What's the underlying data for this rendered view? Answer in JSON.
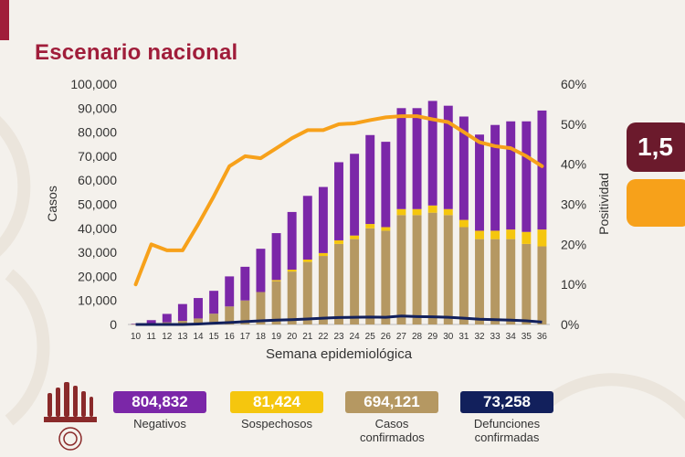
{
  "title": "Escenario nacional",
  "side_cards": [
    {
      "text": "1,5",
      "color": "#6b1a2c"
    },
    {
      "text": "",
      "color": "#f7a11a"
    }
  ],
  "colors": {
    "negativos": "#7b27a8",
    "sospechosos": "#f5c60e",
    "confirmados": "#b59862",
    "defunciones": "#12205c",
    "positividad": "#f7a11a",
    "brand": "#a01d3a"
  },
  "chart_data": {
    "type": "bar",
    "stacked": true,
    "xlabel": "Semana epidemiológica",
    "ylabel": "Casos",
    "y2label": "Positividad",
    "ylim": [
      0,
      100000
    ],
    "y2lim": [
      0,
      60
    ],
    "y_ticks": [
      "0",
      "10,000",
      "20,000",
      "30,000",
      "40,000",
      "50,000",
      "60,000",
      "70,000",
      "80,000",
      "90,000",
      "100,000"
    ],
    "y2_ticks": [
      "0%",
      "10%",
      "20%",
      "30%",
      "40%",
      "50%",
      "60%"
    ],
    "categories": [
      "10",
      "11",
      "12",
      "13",
      "14",
      "15",
      "16",
      "17",
      "18",
      "19",
      "20",
      "21",
      "22",
      "23",
      "24",
      "25",
      "26",
      "27",
      "28",
      "29",
      "30",
      "31",
      "32",
      "33",
      "34",
      "35",
      "36"
    ],
    "series": [
      {
        "name": "Casos confirmados",
        "kind": "bar",
        "values": [
          100,
          300,
          900,
          1500,
          2500,
          4500,
          7500,
          10000,
          13500,
          18000,
          22000,
          26000,
          28500,
          33500,
          35500,
          40000,
          39000,
          45500,
          45500,
          46500,
          45500,
          40500,
          35500,
          35500,
          35500,
          33500,
          32500
        ]
      },
      {
        "name": "Sospechosos",
        "kind": "bar",
        "values": [
          0,
          0,
          0,
          0,
          0,
          0,
          0,
          0,
          0,
          500,
          800,
          1000,
          1200,
          1500,
          1500,
          1800,
          1500,
          2500,
          2500,
          3000,
          2500,
          3000,
          3500,
          3500,
          4000,
          5000,
          7000
        ]
      },
      {
        "name": "Negativos",
        "kind": "bar",
        "values": [
          200,
          1500,
          3500,
          7000,
          8500,
          9500,
          12500,
          14000,
          18000,
          19500,
          24000,
          26500,
          27500,
          32500,
          34000,
          37000,
          35500,
          42000,
          42000,
          43500,
          43000,
          43000,
          40000,
          44000,
          45000,
          46000,
          49500
        ]
      },
      {
        "name": "Defunciones confirmadas",
        "kind": "line",
        "values": [
          0,
          0,
          0,
          0,
          200,
          500,
          800,
          1200,
          1500,
          1800,
          2000,
          2300,
          2600,
          2900,
          3000,
          3100,
          3000,
          3500,
          3300,
          3200,
          3000,
          2600,
          2200,
          2000,
          1800,
          1500,
          1000
        ]
      },
      {
        "name": "Positividad",
        "kind": "line",
        "axis": "right",
        "values": [
          10,
          20,
          18.5,
          18.5,
          25,
          32,
          39.5,
          42,
          41.5,
          44,
          46.5,
          48.5,
          48.5,
          50,
          50.2,
          51,
          51.7,
          52,
          52,
          51.2,
          50.5,
          48,
          45.5,
          44.5,
          44,
          42,
          39.5
        ]
      }
    ]
  },
  "summary": [
    {
      "value": "804,832",
      "label": "Negativos",
      "bg": "#7b27a8",
      "fg": "#ffffff"
    },
    {
      "value": "81,424",
      "label": "Sospechosos",
      "bg": "#f5c60e",
      "fg": "#ffffff"
    },
    {
      "value": "694,121",
      "label": "Casos confirmados",
      "bg": "#b59862",
      "fg": "#ffffff"
    },
    {
      "value": "73,258",
      "label": "Defunciones confirmadas",
      "bg": "#12205c",
      "fg": "#ffffff"
    }
  ]
}
